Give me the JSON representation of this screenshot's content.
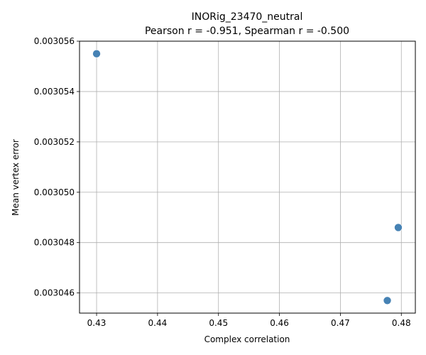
{
  "chart_data": {
    "type": "scatter",
    "title": "INORig_23470_neutral",
    "subtitle": "Pearson r = -0.951, Spearman r = -0.500",
    "xlabel": "Complex correlation",
    "ylabel": "Mean vertex error",
    "xlim": [
      0.4272,
      0.4823
    ],
    "ylim": [
      0.0030452,
      0.003056
    ],
    "x_ticks": [
      0.43,
      0.44,
      0.45,
      0.46,
      0.47,
      0.48
    ],
    "x_tick_labels": [
      "0.43",
      "0.44",
      "0.45",
      "0.46",
      "0.47",
      "0.48"
    ],
    "y_ticks": [
      0.003046,
      0.003048,
      0.00305,
      0.003052,
      0.003054,
      0.003056
    ],
    "y_tick_labels": [
      "0.003046",
      "0.003048",
      "0.003050",
      "0.003052",
      "0.003054",
      "0.003056"
    ],
    "grid": true,
    "series": [
      {
        "color": "#4682b4",
        "points": [
          {
            "x": 0.43,
            "y": 0.0030555
          },
          {
            "x": 0.4795,
            "y": 0.0030486
          },
          {
            "x": 0.4777,
            "y": 0.0030457
          }
        ]
      }
    ]
  }
}
